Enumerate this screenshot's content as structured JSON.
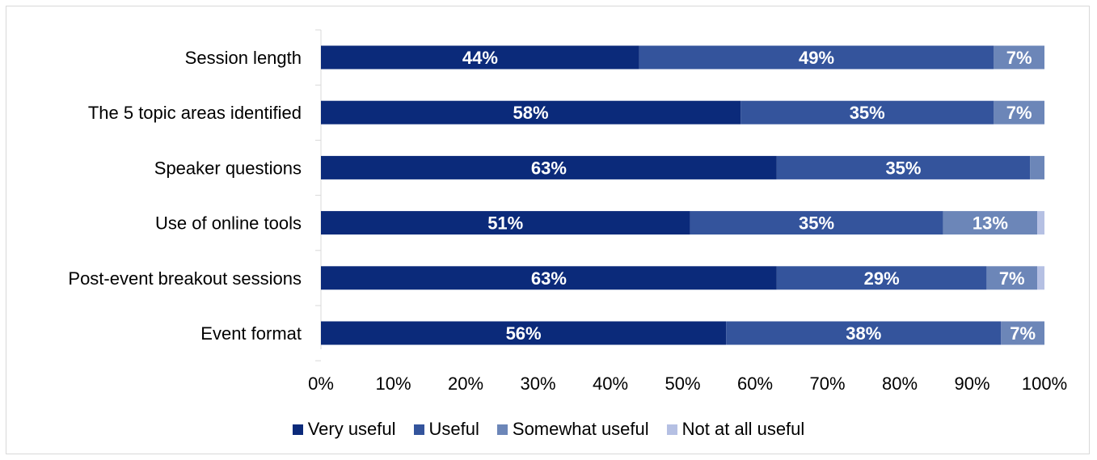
{
  "chart_data": {
    "type": "bar",
    "orientation": "horizontal",
    "stacked": "percent",
    "categories": [
      "Session length",
      "The 5 topic areas identified",
      "Speaker questions",
      "Use of online tools ",
      "Post-event breakout sessions",
      "Event format"
    ],
    "series": [
      {
        "name": "Very useful",
        "color": "#0b2a7a",
        "values": [
          44,
          58,
          63,
          51,
          63,
          56
        ],
        "labels": [
          "44%",
          "58%",
          "63%",
          "51%",
          "63%",
          "56%"
        ]
      },
      {
        "name": "Useful",
        "color": "#34549c",
        "values": [
          49,
          35,
          35,
          35,
          29,
          38
        ],
        "labels": [
          "49%",
          "35%",
          "35%",
          "35%",
          "29%",
          "38%"
        ]
      },
      {
        "name": "Somewhat useful",
        "color": "#6c86b8",
        "values": [
          7,
          7,
          3,
          13,
          7,
          7
        ],
        "labels": [
          "7%",
          "7%",
          "",
          "13%",
          "7%",
          "7%"
        ]
      },
      {
        "name": "Not at all useful",
        "color": "#b5c0e3",
        "values": [
          0,
          0,
          0,
          1.5,
          1.5,
          0
        ],
        "labels": [
          "",
          "",
          "",
          "",
          "",
          ""
        ]
      }
    ],
    "xlim": [
      0,
      100
    ],
    "x_ticks": [
      "0%",
      "10%",
      "20%",
      "30%",
      "40%",
      "50%",
      "60%",
      "70%",
      "80%",
      "90%",
      "100%"
    ],
    "grid": false,
    "legend_position": "bottom"
  }
}
